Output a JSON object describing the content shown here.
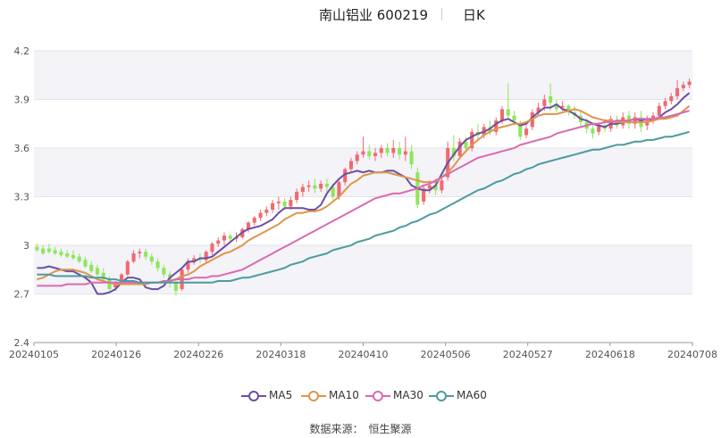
{
  "header": {
    "name": "南山铝业 600219",
    "period": "日K"
  },
  "source": {
    "label": "数据来源：",
    "value": "恒生聚源"
  },
  "chart_data": {
    "type": "candlestick",
    "ylim": [
      2.4,
      4.2
    ],
    "yticks": [
      "2.4",
      "2.7",
      "3",
      "3.3",
      "3.6",
      "3.9",
      "4.2"
    ],
    "xticks": [
      "20240105",
      "20240126",
      "20240226",
      "20240318",
      "20240410",
      "20240506",
      "20240527",
      "20240618",
      "20240708"
    ],
    "colors": {
      "up": "#f0696e",
      "down": "#8ee65a",
      "ma5": "#6a4fa3",
      "ma10": "#e0944a",
      "ma30": "#d96bb0",
      "ma60": "#4d9a9e"
    },
    "candles": [
      [
        2.99,
        3.01,
        2.97,
        2.96
      ],
      [
        2.98,
        3.0,
        2.95,
        2.94
      ],
      [
        2.98,
        3.01,
        2.96,
        2.95
      ],
      [
        2.97,
        2.99,
        2.95,
        2.94
      ],
      [
        2.96,
        2.98,
        2.94,
        2.93
      ],
      [
        2.95,
        2.97,
        2.93,
        2.92
      ],
      [
        2.94,
        2.97,
        2.92,
        2.91
      ],
      [
        2.93,
        2.95,
        2.9,
        2.89
      ],
      [
        2.91,
        2.93,
        2.87,
        2.86
      ],
      [
        2.88,
        2.9,
        2.84,
        2.83
      ],
      [
        2.86,
        2.88,
        2.82,
        2.81
      ],
      [
        2.83,
        2.86,
        2.79,
        2.78
      ],
      [
        2.79,
        2.81,
        2.73,
        2.72
      ],
      [
        2.74,
        2.78,
        2.77,
        2.72
      ],
      [
        2.77,
        2.83,
        2.82,
        2.76
      ],
      [
        2.82,
        2.91,
        2.9,
        2.81
      ],
      [
        2.9,
        2.97,
        2.95,
        2.89
      ],
      [
        2.95,
        2.98,
        2.96,
        2.92
      ],
      [
        2.96,
        2.98,
        2.93,
        2.91
      ],
      [
        2.93,
        2.95,
        2.9,
        2.88
      ],
      [
        2.9,
        2.92,
        2.86,
        2.84
      ],
      [
        2.86,
        2.88,
        2.82,
        2.8
      ],
      [
        2.82,
        2.84,
        2.77,
        2.74
      ],
      [
        2.77,
        2.79,
        2.72,
        2.69
      ],
      [
        2.73,
        2.86,
        2.85,
        2.72
      ],
      [
        2.85,
        2.92,
        2.9,
        2.83
      ],
      [
        2.9,
        2.94,
        2.92,
        2.88
      ],
      [
        2.92,
        2.95,
        2.91,
        2.89
      ],
      [
        2.91,
        2.97,
        2.96,
        2.89
      ],
      [
        2.96,
        3.02,
        3.01,
        2.94
      ],
      [
        3.01,
        3.05,
        3.03,
        2.99
      ],
      [
        3.03,
        3.08,
        3.06,
        3.0
      ],
      [
        3.06,
        3.07,
        3.04,
        3.02
      ],
      [
        3.04,
        3.08,
        3.05,
        3.02
      ],
      [
        3.05,
        3.11,
        3.1,
        3.04
      ],
      [
        3.1,
        3.15,
        3.14,
        3.08
      ],
      [
        3.14,
        3.18,
        3.17,
        3.12
      ],
      [
        3.17,
        3.22,
        3.2,
        3.15
      ],
      [
        3.2,
        3.24,
        3.22,
        3.18
      ],
      [
        3.22,
        3.28,
        3.26,
        3.2
      ],
      [
        3.26,
        3.3,
        3.27,
        3.22
      ],
      [
        3.27,
        3.29,
        3.24,
        3.22
      ],
      [
        3.24,
        3.3,
        3.28,
        3.22
      ],
      [
        3.28,
        3.35,
        3.33,
        3.26
      ],
      [
        3.33,
        3.38,
        3.36,
        3.3
      ],
      [
        3.36,
        3.4,
        3.37,
        3.33
      ],
      [
        3.37,
        3.41,
        3.35,
        3.32
      ],
      [
        3.35,
        3.4,
        3.38,
        3.33
      ],
      [
        3.38,
        3.41,
        3.36,
        3.33
      ],
      [
        3.36,
        3.38,
        3.3,
        3.28
      ],
      [
        3.3,
        3.4,
        3.39,
        3.28
      ],
      [
        3.39,
        3.48,
        3.47,
        3.37
      ],
      [
        3.47,
        3.54,
        3.52,
        3.45
      ],
      [
        3.52,
        3.58,
        3.56,
        3.5
      ],
      [
        3.56,
        3.67,
        3.58,
        3.54
      ],
      [
        3.58,
        3.62,
        3.55,
        3.53
      ],
      [
        3.55,
        3.6,
        3.57,
        3.52
      ],
      [
        3.57,
        3.62,
        3.6,
        3.54
      ],
      [
        3.6,
        3.63,
        3.57,
        3.55
      ],
      [
        3.57,
        3.65,
        3.6,
        3.54
      ],
      [
        3.6,
        3.64,
        3.56,
        3.53
      ],
      [
        3.56,
        3.67,
        3.58,
        3.52
      ],
      [
        3.58,
        3.62,
        3.5,
        3.47
      ],
      [
        3.45,
        3.48,
        3.25,
        3.23
      ],
      [
        3.27,
        3.37,
        3.35,
        3.25
      ],
      [
        3.35,
        3.4,
        3.37,
        3.32
      ],
      [
        3.37,
        3.41,
        3.34,
        3.31
      ],
      [
        3.34,
        3.42,
        3.4,
        3.32
      ],
      [
        3.42,
        3.64,
        3.6,
        3.4
      ],
      [
        3.6,
        3.68,
        3.55,
        3.52
      ],
      [
        3.55,
        3.66,
        3.64,
        3.53
      ],
      [
        3.64,
        3.67,
        3.6,
        3.57
      ],
      [
        3.6,
        3.72,
        3.7,
        3.58
      ],
      [
        3.7,
        3.75,
        3.68,
        3.65
      ],
      [
        3.68,
        3.75,
        3.73,
        3.66
      ],
      [
        3.73,
        3.77,
        3.7,
        3.68
      ],
      [
        3.7,
        3.79,
        3.77,
        3.68
      ],
      [
        3.77,
        3.86,
        3.84,
        3.75
      ],
      [
        3.84,
        4.0,
        3.8,
        3.78
      ],
      [
        3.8,
        3.83,
        3.77,
        3.74
      ],
      [
        3.75,
        3.77,
        3.67,
        3.65
      ],
      [
        3.68,
        3.74,
        3.72,
        3.66
      ],
      [
        3.73,
        3.84,
        3.82,
        3.71
      ],
      [
        3.82,
        3.88,
        3.85,
        3.8
      ],
      [
        3.86,
        3.93,
        3.9,
        3.83
      ],
      [
        3.92,
        4.0,
        3.88,
        3.83
      ],
      [
        3.86,
        3.9,
        3.84,
        3.82
      ],
      [
        3.85,
        3.89,
        3.86,
        3.83
      ],
      [
        3.86,
        3.87,
        3.82,
        3.8
      ],
      [
        3.82,
        3.86,
        3.8,
        3.78
      ],
      [
        3.8,
        3.83,
        3.76,
        3.73
      ],
      [
        3.76,
        3.78,
        3.72,
        3.69
      ],
      [
        3.72,
        3.76,
        3.69,
        3.66
      ],
      [
        3.7,
        3.76,
        3.74,
        3.68
      ],
      [
        3.74,
        3.78,
        3.72,
        3.7
      ],
      [
        3.72,
        3.8,
        3.78,
        3.7
      ],
      [
        3.77,
        3.8,
        3.74,
        3.72
      ],
      [
        3.74,
        3.82,
        3.79,
        3.72
      ],
      [
        3.8,
        3.83,
        3.75,
        3.72
      ],
      [
        3.75,
        3.82,
        3.79,
        3.72
      ],
      [
        3.79,
        3.83,
        3.73,
        3.7
      ],
      [
        3.74,
        3.8,
        3.77,
        3.71
      ],
      [
        3.77,
        3.82,
        3.8,
        3.75
      ],
      [
        3.8,
        3.88,
        3.86,
        3.78
      ],
      [
        3.86,
        3.91,
        3.89,
        3.84
      ],
      [
        3.89,
        3.94,
        3.92,
        3.87
      ],
      [
        3.92,
        4.02,
        3.97,
        3.9
      ],
      [
        3.97,
        4.01,
        3.99,
        3.95
      ],
      [
        3.99,
        4.03,
        4.01,
        3.97
      ]
    ],
    "series": [
      {
        "name": "MA5",
        "values": [
          2.86,
          2.86,
          2.87,
          2.86,
          2.85,
          2.84,
          2.84,
          2.82,
          2.8,
          2.77,
          2.7,
          2.7,
          2.71,
          2.73,
          2.77,
          2.8,
          2.8,
          2.79,
          2.74,
          2.73,
          2.73,
          2.75,
          2.8,
          2.83,
          2.86,
          2.9,
          2.9,
          2.92,
          2.92,
          2.93,
          2.96,
          2.99,
          3.02,
          3.05,
          3.08,
          3.1,
          3.11,
          3.12,
          3.14,
          3.16,
          3.2,
          3.23,
          3.23,
          3.23,
          3.23,
          3.22,
          3.22,
          3.25,
          3.32,
          3.37,
          3.41,
          3.44,
          3.45,
          3.46,
          3.45,
          3.46,
          3.45,
          3.45,
          3.46,
          3.46,
          3.44,
          3.42,
          3.37,
          3.35,
          3.34,
          3.34,
          3.37,
          3.44,
          3.51,
          3.56,
          3.61,
          3.65,
          3.67,
          3.69,
          3.7,
          3.72,
          3.75,
          3.77,
          3.78,
          3.76,
          3.74,
          3.75,
          3.79,
          3.82,
          3.85,
          3.85,
          3.87,
          3.84,
          3.83,
          3.81,
          3.78,
          3.77,
          3.75,
          3.74,
          3.73,
          3.75,
          3.75,
          3.76,
          3.77,
          3.78,
          3.77,
          3.78,
          3.77,
          3.79,
          3.82,
          3.84,
          3.87,
          3.91,
          3.94
        ]
      },
      {
        "name": "MA10",
        "values": [
          2.79,
          2.8,
          2.82,
          2.84,
          2.85,
          2.85,
          2.85,
          2.84,
          2.83,
          2.81,
          2.79,
          2.78,
          2.77,
          2.76,
          2.76,
          2.76,
          2.76,
          2.76,
          2.76,
          2.77,
          2.77,
          2.78,
          2.78,
          2.79,
          2.81,
          2.82,
          2.84,
          2.87,
          2.89,
          2.91,
          2.93,
          2.95,
          2.96,
          2.98,
          3.0,
          3.03,
          3.05,
          3.07,
          3.09,
          3.11,
          3.13,
          3.16,
          3.18,
          3.2,
          3.2,
          3.21,
          3.21,
          3.22,
          3.24,
          3.27,
          3.3,
          3.34,
          3.38,
          3.4,
          3.43,
          3.44,
          3.45,
          3.45,
          3.45,
          3.44,
          3.43,
          3.42,
          3.41,
          3.4,
          3.39,
          3.39,
          3.39,
          3.42,
          3.45,
          3.49,
          3.54,
          3.58,
          3.62,
          3.65,
          3.68,
          3.7,
          3.72,
          3.73,
          3.74,
          3.75,
          3.75,
          3.76,
          3.78,
          3.8,
          3.81,
          3.81,
          3.81,
          3.82,
          3.83,
          3.84,
          3.83,
          3.81,
          3.79,
          3.78,
          3.77,
          3.77,
          3.76,
          3.76,
          3.76,
          3.76,
          3.76,
          3.76,
          3.77,
          3.78,
          3.78,
          3.79,
          3.8,
          3.83,
          3.86
        ]
      },
      {
        "name": "MA30",
        "values": [
          2.75,
          2.75,
          2.75,
          2.75,
          2.75,
          2.76,
          2.76,
          2.76,
          2.76,
          2.77,
          2.77,
          2.77,
          2.77,
          2.77,
          2.77,
          2.77,
          2.77,
          2.77,
          2.77,
          2.77,
          2.77,
          2.78,
          2.78,
          2.79,
          2.79,
          2.79,
          2.8,
          2.8,
          2.8,
          2.81,
          2.81,
          2.82,
          2.83,
          2.84,
          2.85,
          2.87,
          2.89,
          2.91,
          2.93,
          2.95,
          2.97,
          2.99,
          3.01,
          3.03,
          3.05,
          3.07,
          3.09,
          3.11,
          3.13,
          3.15,
          3.17,
          3.19,
          3.21,
          3.23,
          3.25,
          3.27,
          3.29,
          3.3,
          3.31,
          3.32,
          3.32,
          3.33,
          3.34,
          3.35,
          3.37,
          3.38,
          3.4,
          3.42,
          3.44,
          3.46,
          3.48,
          3.5,
          3.52,
          3.54,
          3.55,
          3.56,
          3.57,
          3.58,
          3.59,
          3.6,
          3.62,
          3.63,
          3.64,
          3.65,
          3.66,
          3.67,
          3.69,
          3.7,
          3.71,
          3.72,
          3.73,
          3.74,
          3.75,
          3.75,
          3.76,
          3.76,
          3.77,
          3.77,
          3.77,
          3.78,
          3.78,
          3.78,
          3.78,
          3.79,
          3.79,
          3.8,
          3.81,
          3.82,
          3.83
        ]
      },
      {
        "name": "MA60",
        "values": [
          2.82,
          2.82,
          2.82,
          2.81,
          2.81,
          2.81,
          2.81,
          2.81,
          2.81,
          2.8,
          2.8,
          2.8,
          2.79,
          2.79,
          2.78,
          2.78,
          2.78,
          2.77,
          2.77,
          2.77,
          2.77,
          2.77,
          2.77,
          2.77,
          2.77,
          2.77,
          2.77,
          2.77,
          2.77,
          2.77,
          2.78,
          2.78,
          2.78,
          2.79,
          2.8,
          2.8,
          2.81,
          2.82,
          2.83,
          2.84,
          2.85,
          2.86,
          2.88,
          2.89,
          2.9,
          2.92,
          2.93,
          2.94,
          2.95,
          2.97,
          2.98,
          2.99,
          3.0,
          3.02,
          3.03,
          3.04,
          3.06,
          3.07,
          3.08,
          3.09,
          3.11,
          3.12,
          3.14,
          3.15,
          3.17,
          3.19,
          3.2,
          3.22,
          3.24,
          3.26,
          3.28,
          3.3,
          3.32,
          3.34,
          3.35,
          3.37,
          3.39,
          3.4,
          3.42,
          3.44,
          3.45,
          3.47,
          3.48,
          3.5,
          3.51,
          3.52,
          3.53,
          3.54,
          3.55,
          3.56,
          3.57,
          3.58,
          3.59,
          3.59,
          3.6,
          3.61,
          3.62,
          3.62,
          3.63,
          3.64,
          3.64,
          3.65,
          3.65,
          3.66,
          3.67,
          3.67,
          3.68,
          3.69,
          3.7
        ]
      }
    ]
  }
}
